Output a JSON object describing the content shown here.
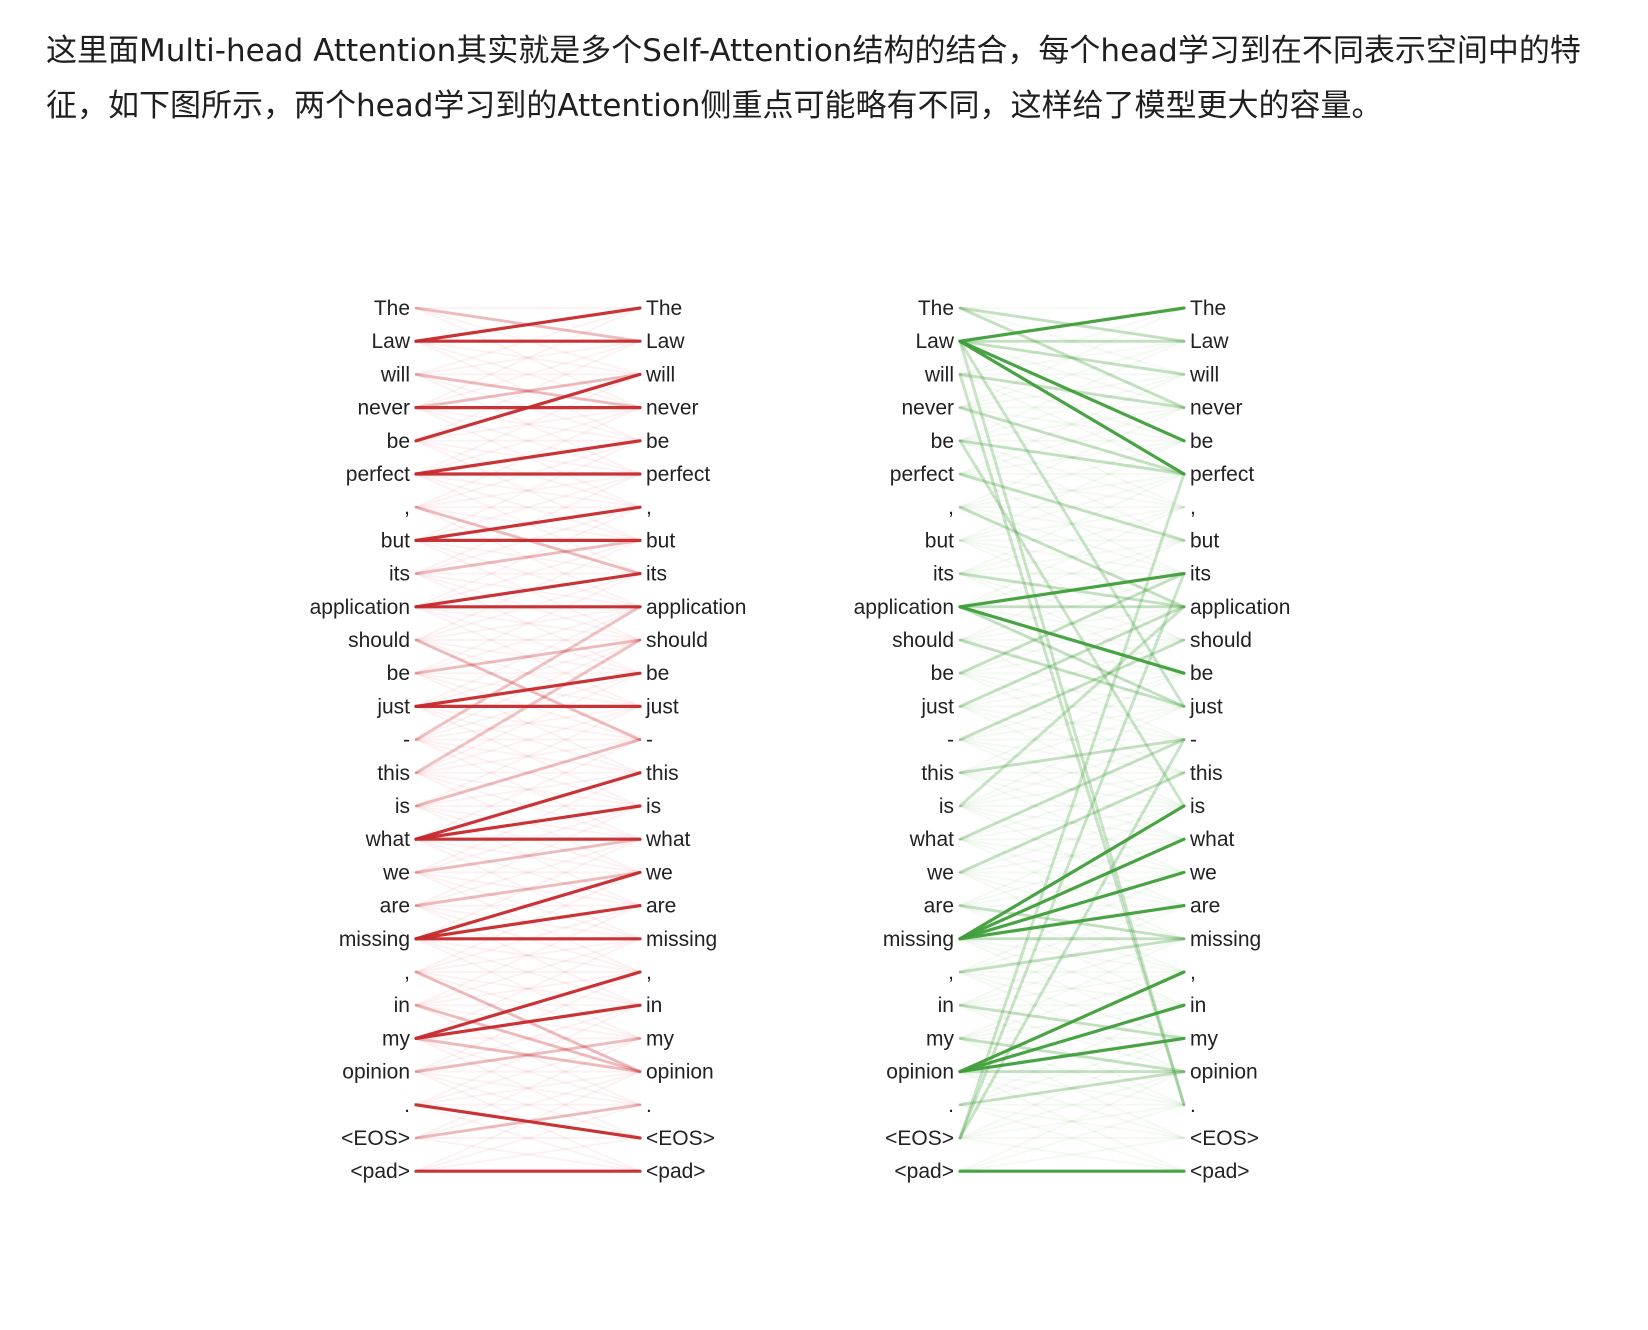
{
  "paragraph": "这里面Multi-head Attention其实就是多个Self-Attention结构的结合，每个head学习到在不同表示空间中的特征，如下图所示，两个head学习到的Attention侧重点可能略有不同，这样给了模型更大的容量。",
  "tokens": [
    "The",
    "Law",
    "will",
    "never",
    "be",
    "perfect",
    ",",
    "but",
    "its",
    "application",
    "should",
    "be",
    "just",
    "-",
    "this",
    "is",
    "what",
    "we",
    "are",
    "missing",
    ",",
    "in",
    "my",
    "opinion",
    ".",
    "<EOS>",
    "<pad>"
  ],
  "colors": {
    "head1": "#c6282b",
    "head2": "#3f9e3a",
    "text": "#1f1f1f"
  },
  "heads": [
    {
      "strong_links": [
        [
          1,
          0
        ],
        [
          1,
          1
        ],
        [
          3,
          3
        ],
        [
          4,
          2
        ],
        [
          5,
          4
        ],
        [
          5,
          5
        ],
        [
          7,
          6
        ],
        [
          7,
          7
        ],
        [
          9,
          8
        ],
        [
          9,
          9
        ],
        [
          12,
          11
        ],
        [
          12,
          12
        ],
        [
          16,
          14
        ],
        [
          16,
          15
        ],
        [
          16,
          16
        ],
        [
          19,
          17
        ],
        [
          19,
          18
        ],
        [
          19,
          19
        ],
        [
          22,
          20
        ],
        [
          22,
          21
        ],
        [
          24,
          25
        ],
        [
          26,
          26
        ]
      ],
      "weak_links": [
        [
          10,
          13
        ],
        [
          11,
          10
        ],
        [
          14,
          10
        ],
        [
          15,
          13
        ],
        [
          13,
          9
        ],
        [
          20,
          23
        ],
        [
          21,
          23
        ],
        [
          22,
          23
        ],
        [
          23,
          22
        ],
        [
          25,
          24
        ],
        [
          2,
          3
        ],
        [
          8,
          7
        ],
        [
          6,
          8
        ],
        [
          17,
          16
        ],
        [
          18,
          17
        ],
        [
          3,
          2
        ],
        [
          0,
          1
        ]
      ]
    },
    {
      "strong_links": [
        [
          1,
          0
        ],
        [
          1,
          4
        ],
        [
          1,
          5
        ],
        [
          9,
          8
        ],
        [
          9,
          11
        ],
        [
          19,
          15
        ],
        [
          19,
          16
        ],
        [
          19,
          17
        ],
        [
          19,
          18
        ],
        [
          23,
          20
        ],
        [
          23,
          21
        ],
        [
          23,
          22
        ],
        [
          26,
          26
        ]
      ],
      "weak_links": [
        [
          0,
          1
        ],
        [
          0,
          3
        ],
        [
          1,
          1
        ],
        [
          1,
          2
        ],
        [
          1,
          12
        ],
        [
          1,
          24
        ],
        [
          2,
          3
        ],
        [
          3,
          5
        ],
        [
          4,
          5
        ],
        [
          5,
          7
        ],
        [
          8,
          9
        ],
        [
          9,
          9
        ],
        [
          9,
          12
        ],
        [
          10,
          12
        ],
        [
          12,
          9
        ],
        [
          14,
          13
        ],
        [
          15,
          9
        ],
        [
          16,
          13
        ],
        [
          18,
          19
        ],
        [
          19,
          19
        ],
        [
          21,
          22
        ],
        [
          22,
          23
        ],
        [
          23,
          23
        ],
        [
          25,
          5
        ],
        [
          25,
          8
        ],
        [
          25,
          13
        ],
        [
          24,
          23
        ],
        [
          17,
          14
        ],
        [
          20,
          19
        ],
        [
          6,
          9
        ],
        [
          11,
          8
        ],
        [
          2,
          24
        ],
        [
          13,
          10
        ],
        [
          4,
          15
        ]
      ]
    }
  ]
}
